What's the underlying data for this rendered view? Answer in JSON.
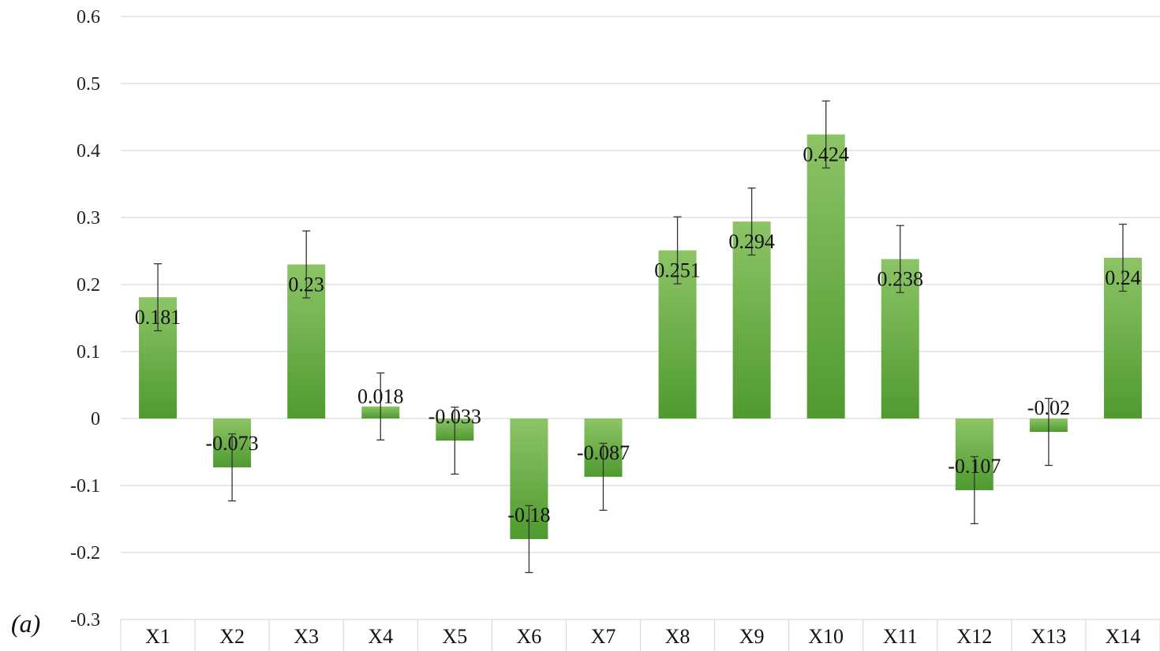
{
  "chart_data": {
    "type": "bar",
    "panel_label": "(a)",
    "title": "",
    "xlabel": "",
    "ylabel": "",
    "categories": [
      "X1",
      "X2",
      "X3",
      "X4",
      "X5",
      "X6",
      "X7",
      "X8",
      "X9",
      "X10",
      "X11",
      "X12",
      "X13",
      "X14"
    ],
    "values": [
      0.181,
      -0.073,
      0.23,
      0.018,
      -0.033,
      -0.18,
      -0.087,
      0.251,
      0.294,
      0.424,
      0.238,
      -0.107,
      -0.02,
      0.24
    ],
    "data_labels": [
      "0.181",
      "-0.073",
      "0.23",
      "0.018",
      "-0.033",
      "-0.18",
      "-0.087",
      "0.251",
      "0.294",
      "0.424",
      "0.238",
      "-0.107",
      "-0.02",
      "0.24"
    ],
    "error": [
      0.05,
      0.05,
      0.05,
      0.05,
      0.05,
      0.05,
      0.05,
      0.05,
      0.05,
      0.05,
      0.05,
      0.05,
      0.05,
      0.05
    ],
    "ylim": [
      -0.3,
      0.6
    ],
    "yticks": [
      0.6,
      0.5,
      0.4,
      0.3,
      0.2,
      0.1,
      0,
      -0.1,
      -0.2,
      -0.3
    ],
    "ytick_labels": [
      "0.6",
      "0.5",
      "0.4",
      "0.3",
      "0.2",
      "0.1",
      "0",
      "-0.1",
      "-0.2",
      "-0.3"
    ],
    "grid": true,
    "legend": "none",
    "colors": {
      "bar_light": "#8cc466",
      "bar_dark": "#4f9a2f",
      "grid": "#d9d9d9",
      "error_bar": "#333333"
    }
  }
}
